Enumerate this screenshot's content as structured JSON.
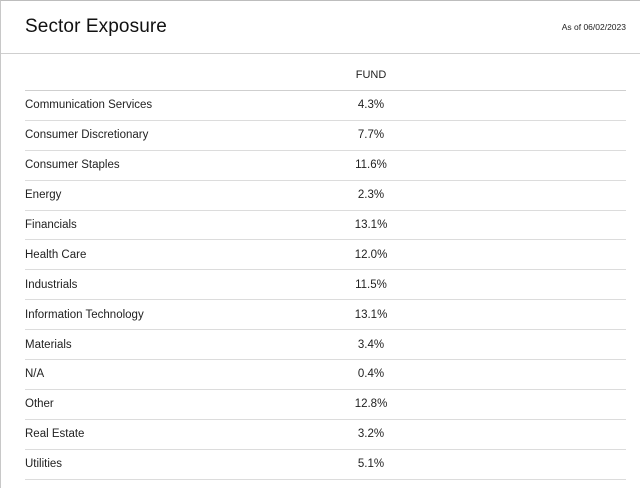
{
  "header": {
    "title": "Sector Exposure",
    "as_of": "As of 06/02/2023"
  },
  "table": {
    "column_header": "FUND",
    "rows": [
      {
        "sector": "Communication Services",
        "fund": "4.3%"
      },
      {
        "sector": "Consumer Discretionary",
        "fund": "7.7%"
      },
      {
        "sector": "Consumer Staples",
        "fund": "11.6%"
      },
      {
        "sector": "Energy",
        "fund": "2.3%"
      },
      {
        "sector": "Financials",
        "fund": "13.1%"
      },
      {
        "sector": "Health Care",
        "fund": "12.0%"
      },
      {
        "sector": "Industrials",
        "fund": "11.5%"
      },
      {
        "sector": "Information Technology",
        "fund": "13.1%"
      },
      {
        "sector": "Materials",
        "fund": "3.4%"
      },
      {
        "sector": "N/A",
        "fund": "0.4%"
      },
      {
        "sector": "Other",
        "fund": "12.8%"
      },
      {
        "sector": "Real Estate",
        "fund": "3.2%"
      },
      {
        "sector": "Utilities",
        "fund": "5.1%"
      }
    ]
  }
}
